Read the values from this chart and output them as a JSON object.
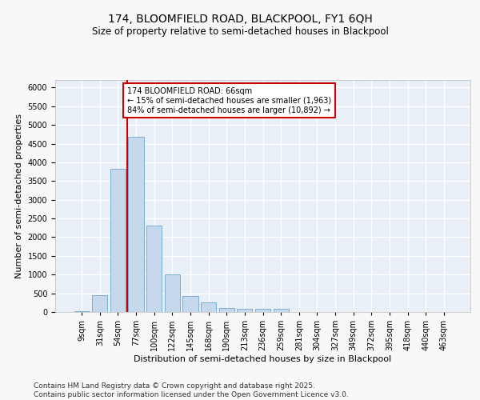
{
  "title_line1": "174, BLOOMFIELD ROAD, BLACKPOOL, FY1 6QH",
  "title_line2": "Size of property relative to semi-detached houses in Blackpool",
  "xlabel": "Distribution of semi-detached houses by size in Blackpool",
  "ylabel": "Number of semi-detached properties",
  "categories": [
    "9sqm",
    "31sqm",
    "54sqm",
    "77sqm",
    "100sqm",
    "122sqm",
    "145sqm",
    "168sqm",
    "190sqm",
    "213sqm",
    "236sqm",
    "259sqm",
    "281sqm",
    "304sqm",
    "327sqm",
    "349sqm",
    "372sqm",
    "395sqm",
    "418sqm",
    "440sqm",
    "463sqm"
  ],
  "values": [
    30,
    450,
    3820,
    4680,
    2310,
    1000,
    420,
    250,
    100,
    75,
    80,
    80,
    5,
    0,
    0,
    0,
    0,
    0,
    0,
    0,
    0
  ],
  "bar_color": "#c5d8ec",
  "bar_edge_color": "#7aaed0",
  "vline_color": "#cc0000",
  "vline_x": 2.5,
  "annotation_text": "174 BLOOMFIELD ROAD: 66sqm\n← 15% of semi-detached houses are smaller (1,963)\n84% of semi-detached houses are larger (10,892) →",
  "annotation_box_color": "#ffffff",
  "annotation_box_edge": "#cc0000",
  "ylim": [
    0,
    6200
  ],
  "yticks": [
    0,
    500,
    1000,
    1500,
    2000,
    2500,
    3000,
    3500,
    4000,
    4500,
    5000,
    5500,
    6000
  ],
  "background_color": "#e8eff7",
  "grid_color": "#ffffff",
  "footer_text": "Contains HM Land Registry data © Crown copyright and database right 2025.\nContains public sector information licensed under the Open Government Licence v3.0.",
  "title_fontsize": 10,
  "subtitle_fontsize": 8.5,
  "axis_label_fontsize": 8,
  "tick_fontsize": 7,
  "annotation_fontsize": 7,
  "footer_fontsize": 6.5
}
